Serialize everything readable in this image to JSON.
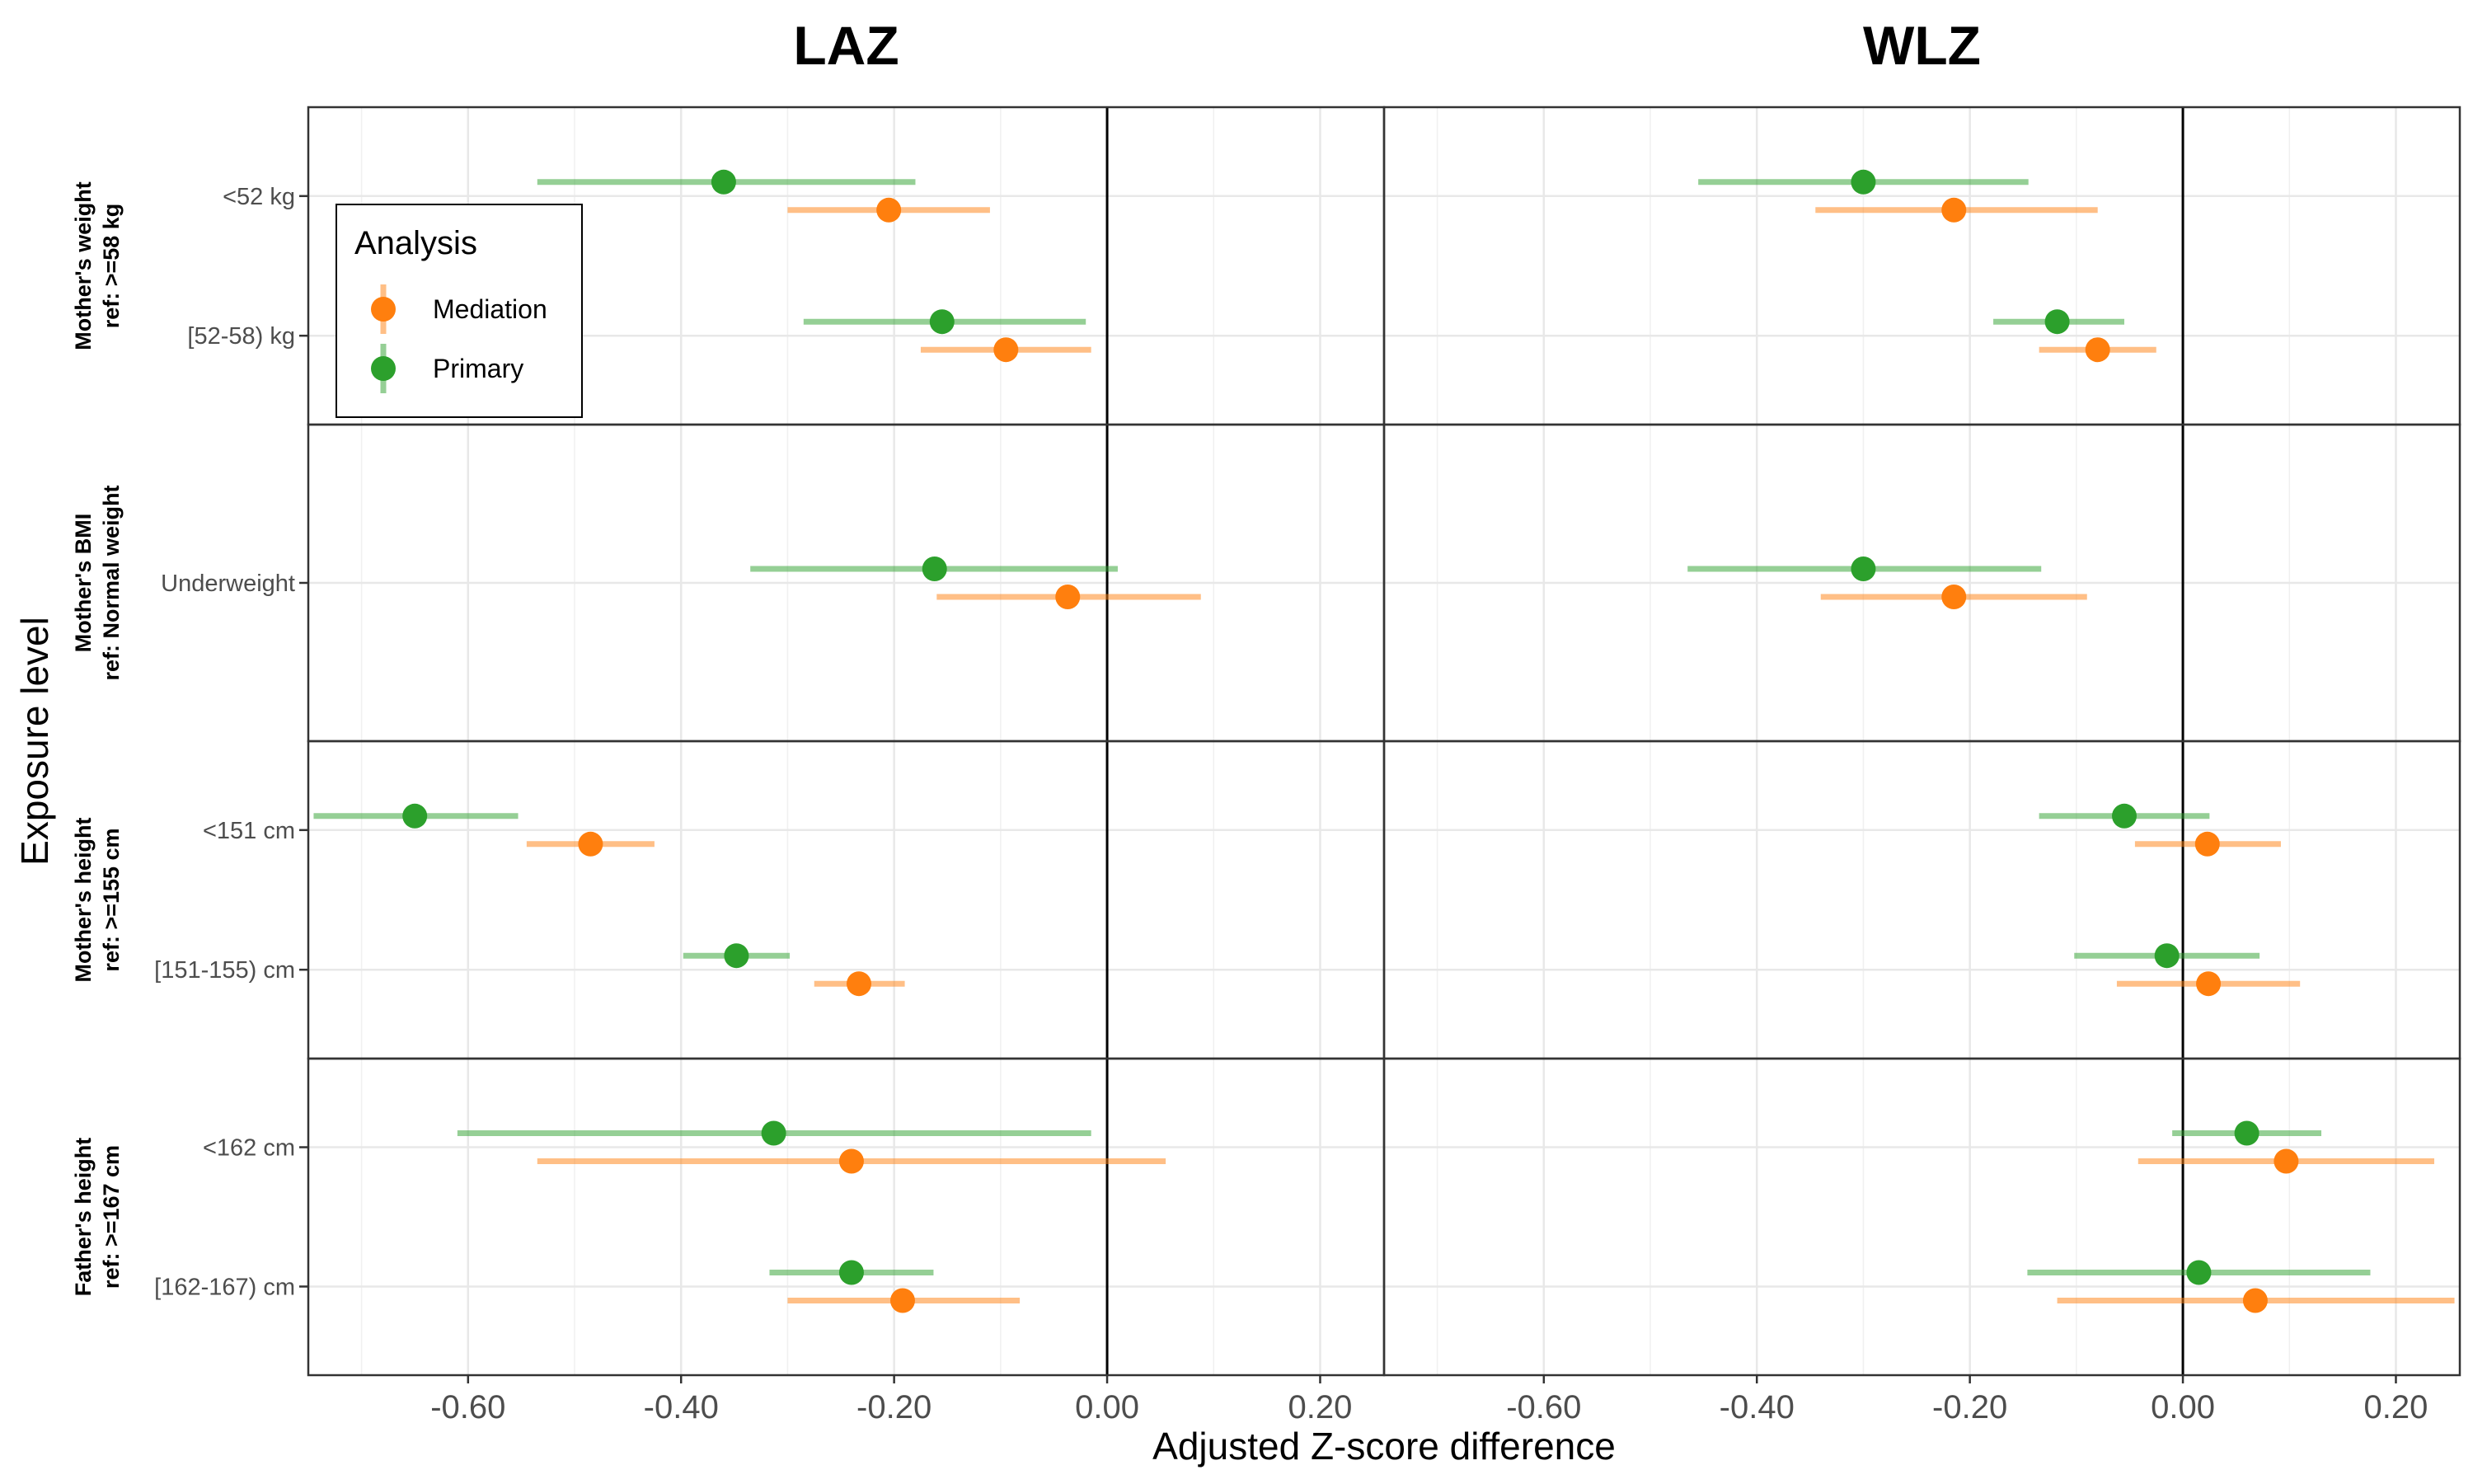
{
  "chart_data": {
    "type": "forest",
    "panels": [
      "LAZ",
      "WLZ"
    ],
    "xlabel": "Adjusted Z-score difference",
    "ylabel": "Exposure level",
    "xlim": [
      -0.75,
      0.26
    ],
    "x_ticks": [
      "-0.60",
      "-0.40",
      "-0.20",
      "0.00",
      "0.20"
    ],
    "x_tick_values": [
      -0.6,
      -0.4,
      -0.2,
      0.0,
      0.2
    ],
    "legend": {
      "title": "Analysis",
      "placement": "inside-top-left",
      "entries": [
        {
          "name": "Mediation",
          "color": "#ff7f0e"
        },
        {
          "name": "Primary",
          "color": "#2ca02c"
        }
      ]
    },
    "groups": [
      {
        "strip": [
          "Mother's weight",
          "ref: >=58 kg"
        ],
        "levels": [
          {
            "label": "<52 kg",
            "LAZ": {
              "Primary": [
                -0.36,
                -0.535,
                -0.18
              ],
              "Mediation": [
                -0.205,
                -0.3,
                -0.11
              ]
            },
            "WLZ": {
              "Primary": [
                -0.3,
                -0.455,
                -0.145
              ],
              "Mediation": [
                -0.215,
                -0.345,
                -0.08
              ]
            }
          },
          {
            "label": "[52-58) kg",
            "LAZ": {
              "Primary": [
                -0.155,
                -0.285,
                -0.02
              ],
              "Mediation": [
                -0.095,
                -0.175,
                -0.015
              ]
            },
            "WLZ": {
              "Primary": [
                -0.118,
                -0.178,
                -0.055
              ],
              "Mediation": [
                -0.08,
                -0.135,
                -0.025
              ]
            }
          }
        ]
      },
      {
        "strip": [
          "Mother's BMI",
          "ref: Normal weight"
        ],
        "levels": [
          {
            "label": "Underweight",
            "LAZ": {
              "Primary": [
                -0.162,
                -0.335,
                0.01
              ],
              "Mediation": [
                -0.037,
                -0.16,
                0.088
              ]
            },
            "WLZ": {
              "Primary": [
                -0.3,
                -0.465,
                -0.133
              ],
              "Mediation": [
                -0.215,
                -0.34,
                -0.09
              ]
            }
          }
        ]
      },
      {
        "strip": [
          "Mother's height",
          "ref: >=155 cm"
        ],
        "levels": [
          {
            "label": "<151 cm",
            "LAZ": {
              "Primary": [
                -0.65,
                -0.745,
                -0.553
              ],
              "Mediation": [
                -0.485,
                -0.545,
                -0.425
              ]
            },
            "WLZ": {
              "Primary": [
                -0.055,
                -0.135,
                0.025
              ],
              "Mediation": [
                0.023,
                -0.045,
                0.092
              ]
            }
          },
          {
            "label": "[151-155) cm",
            "LAZ": {
              "Primary": [
                -0.348,
                -0.398,
                -0.298
              ],
              "Mediation": [
                -0.233,
                -0.275,
                -0.19
              ]
            },
            "WLZ": {
              "Primary": [
                -0.015,
                -0.102,
                0.072
              ],
              "Mediation": [
                0.024,
                -0.062,
                0.11
              ]
            }
          }
        ]
      },
      {
        "strip": [
          "Father's height",
          "ref: >=167 cm"
        ],
        "levels": [
          {
            "label": "<162 cm",
            "LAZ": {
              "Primary": [
                -0.313,
                -0.61,
                -0.015
              ],
              "Mediation": [
                -0.24,
                -0.535,
                0.055
              ]
            },
            "WLZ": {
              "Primary": [
                0.06,
                -0.01,
                0.13
              ],
              "Mediation": [
                0.097,
                -0.042,
                0.236
              ]
            }
          },
          {
            "label": "[162-167) cm",
            "LAZ": {
              "Primary": [
                -0.24,
                -0.317,
                -0.163
              ],
              "Mediation": [
                -0.192,
                -0.3,
                -0.082
              ]
            },
            "WLZ": {
              "Primary": [
                0.015,
                -0.146,
                0.176
              ],
              "Mediation": [
                0.068,
                -0.118,
                0.255
              ]
            }
          }
        ]
      }
    ]
  }
}
